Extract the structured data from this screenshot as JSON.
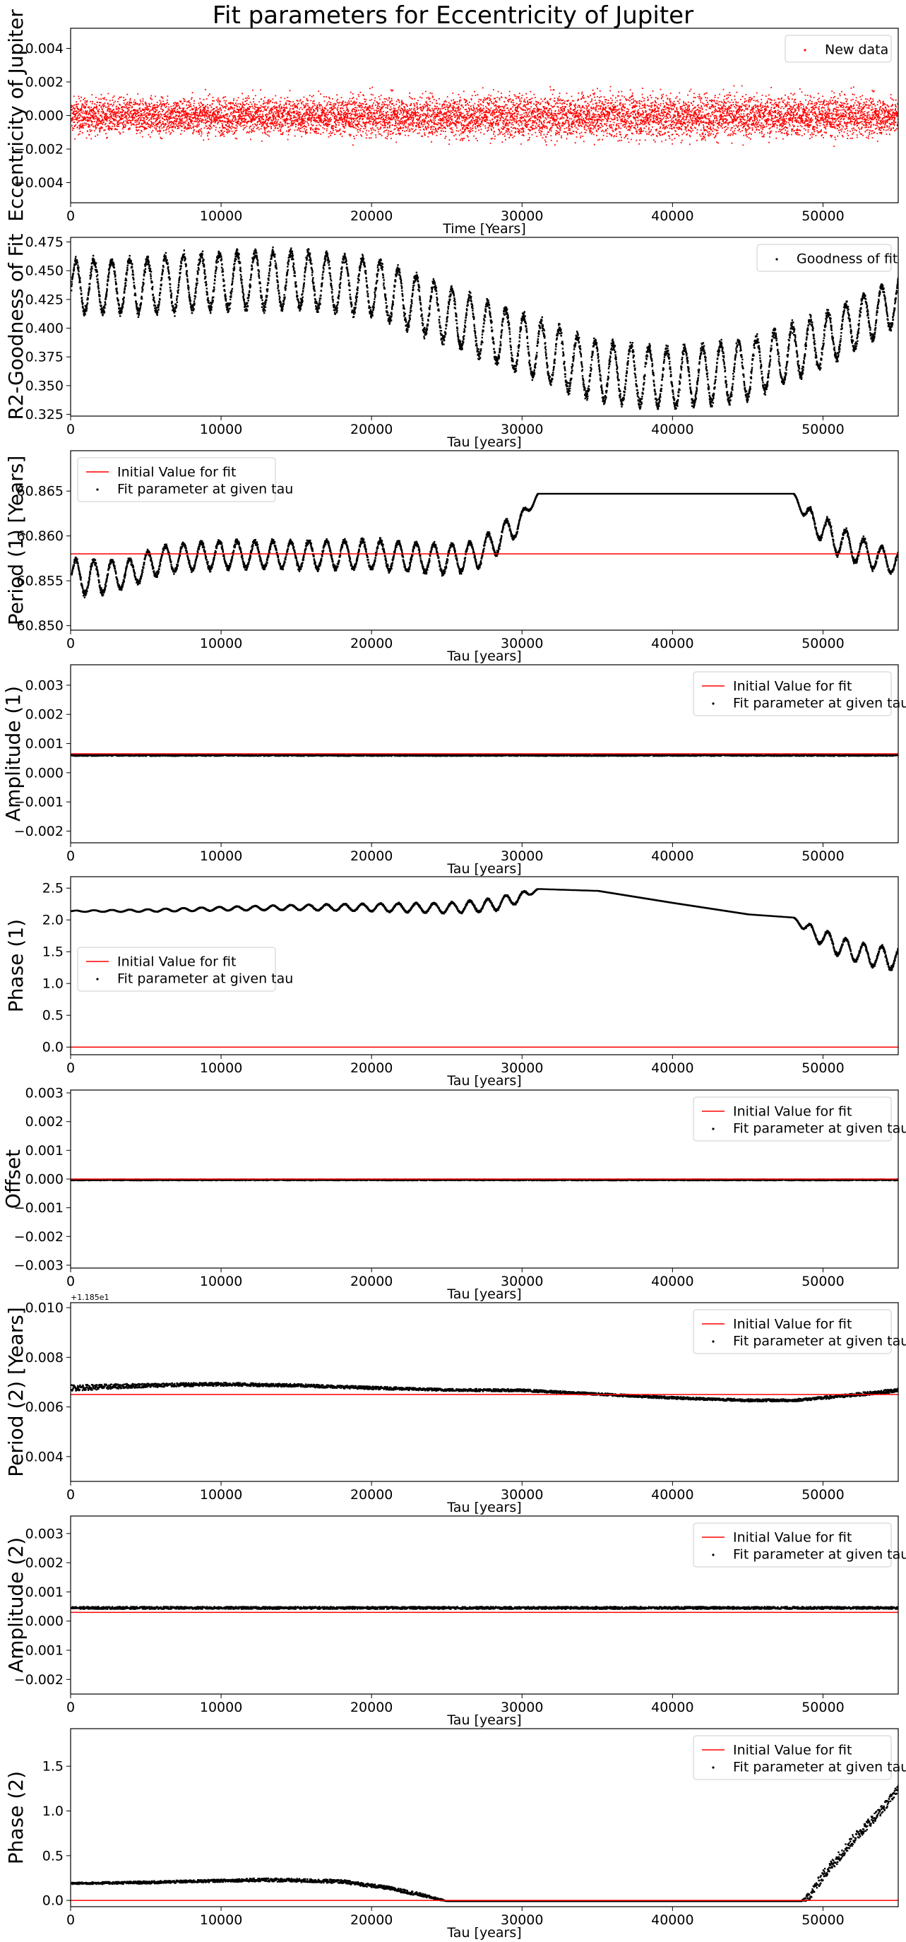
{
  "figure": {
    "title": "Fit parameters for Eccentricity of Jupiter"
  },
  "colors": {
    "initial_line": "#ff0000",
    "new_data_points": "#ff0000",
    "fit_points": "#000000",
    "axes": "#000000"
  },
  "chart_data": [
    {
      "type": "scatter",
      "ylabel": "Eccentricity of Jupiter",
      "xlabel": "Time [Years]",
      "xlim": [
        0,
        55000
      ],
      "ylim": [
        -0.0052,
        0.0052
      ],
      "yticks": [
        0.004,
        0.002,
        0.0,
        -0.002,
        -0.004
      ],
      "ytick_labels": [
        "0.004",
        "0.002",
        "0.000",
        "−0.002",
        "−0.004"
      ],
      "xticks": [
        0,
        10000,
        20000,
        30000,
        40000,
        50000
      ],
      "legend": {
        "location": "upper right",
        "entries": [
          {
            "label": "New data",
            "marker": "point",
            "color": "#ff0000"
          }
        ]
      },
      "series": [
        {
          "name": "New data",
          "kind": "noise_band",
          "color": "#ff0000",
          "x": [
            0,
            10000,
            20000,
            30000,
            40000,
            50000,
            55000
          ],
          "y_center": [
            0.0,
            0.0,
            0.0,
            0.0,
            0.0,
            0.0,
            0.0
          ],
          "y_half_width": [
            0.0017,
            0.0018,
            0.0019,
            0.0021,
            0.0022,
            0.002,
            0.0018
          ]
        }
      ]
    },
    {
      "type": "scatter",
      "ylabel": "R2-Goodness of Fit",
      "xlabel": "Tau [years]",
      "xlim": [
        0,
        55000
      ],
      "ylim": [
        0.3235,
        0.479
      ],
      "yticks": [
        0.475,
        0.45,
        0.425,
        0.4,
        0.375,
        0.35,
        0.325
      ],
      "ytick_labels": [
        "0.475",
        "0.450",
        "0.425",
        "0.400",
        "0.375",
        "0.350",
        "0.325"
      ],
      "xticks": [
        0,
        10000,
        20000,
        30000,
        40000,
        50000
      ],
      "legend": {
        "location": "upper right",
        "entries": [
          {
            "label": "Goodness of fit",
            "marker": "point",
            "color": "#000000"
          }
        ]
      },
      "series": [
        {
          "name": "Goodness of fit",
          "kind": "oscillation",
          "color": "#000000",
          "period_years": 1190,
          "x": [
            0,
            5000,
            10000,
            15000,
            20000,
            25000,
            30000,
            35000,
            40000,
            45000,
            50000,
            55000
          ],
          "y_center": [
            0.437,
            0.438,
            0.442,
            0.443,
            0.437,
            0.412,
            0.387,
            0.363,
            0.357,
            0.365,
            0.39,
            0.425
          ],
          "y_amplitude": [
            0.022,
            0.023,
            0.024,
            0.024,
            0.024,
            0.024,
            0.025,
            0.025,
            0.025,
            0.025,
            0.022,
            0.02
          ]
        }
      ]
    },
    {
      "type": "scatter",
      "ylabel": "Period (1) [Years]",
      "xlabel": "Tau [years]",
      "xlim": [
        0,
        55000
      ],
      "ylim": [
        60.8495,
        60.8695
      ],
      "yticks": [
        60.865,
        60.86,
        60.855,
        60.85
      ],
      "ytick_labels": [
        "60.865",
        "60.860",
        "60.855",
        "60.850"
      ],
      "xticks": [
        0,
        10000,
        20000,
        30000,
        40000,
        50000
      ],
      "legend": {
        "location": "upper left",
        "entries": [
          {
            "label": "Initial Value for fit",
            "marker": "line",
            "color": "#ff0000"
          },
          {
            "label": "Fit parameter at given tau",
            "marker": "point",
            "color": "#000000"
          }
        ]
      },
      "initial_value": 60.858,
      "series": [
        {
          "name": "Fit parameter at given tau",
          "kind": "oscillation",
          "color": "#000000",
          "period_years": 1190,
          "x": [
            0,
            2000,
            4000,
            6000,
            10000,
            15000,
            20000,
            25000,
            27000,
            29000,
            30000,
            31000,
            48000,
            49000,
            51000,
            53000,
            55000
          ],
          "y_center": [
            60.8555,
            60.8555,
            60.856,
            60.8575,
            60.858,
            60.858,
            60.858,
            60.8575,
            60.858,
            60.8605,
            60.862,
            60.8648,
            60.8648,
            60.862,
            60.8595,
            60.858,
            60.857
          ],
          "y_amplitude": [
            0.002,
            0.0018,
            0.0015,
            0.0015,
            0.0015,
            0.0015,
            0.0016,
            0.0016,
            0.0015,
            0.0015,
            0.001,
            0.0,
            0.0,
            0.0012,
            0.0016,
            0.0014,
            0.0012
          ]
        }
      ]
    },
    {
      "type": "scatter",
      "ylabel": "Amplitude (1)",
      "xlabel": "Tau [years]",
      "xlim": [
        0,
        55000
      ],
      "ylim": [
        -0.0024,
        0.0037
      ],
      "yticks": [
        0.003,
        0.002,
        0.001,
        0.0,
        -0.001,
        -0.002
      ],
      "ytick_labels": [
        "0.003",
        "0.002",
        "0.001",
        "0.000",
        "−0.001",
        "−0.002"
      ],
      "xticks": [
        0,
        10000,
        20000,
        30000,
        40000,
        50000
      ],
      "legend": {
        "location": "upper right",
        "entries": [
          {
            "label": "Initial Value for fit",
            "marker": "line",
            "color": "#ff0000"
          },
          {
            "label": "Fit parameter at given tau",
            "marker": "point",
            "color": "#000000"
          }
        ]
      },
      "initial_value": 0.00065,
      "series": [
        {
          "name": "Fit parameter at given tau",
          "kind": "flat",
          "color": "#000000",
          "x": [
            0,
            55000
          ],
          "y_center": [
            0.00063,
            0.00063
          ],
          "y_half_width": [
            3e-05,
            3e-05
          ]
        }
      ]
    },
    {
      "type": "scatter",
      "ylabel": "Phase (1)",
      "xlabel": "Tau [years]",
      "xlim": [
        0,
        55000
      ],
      "ylim": [
        -0.12,
        2.68
      ],
      "yticks": [
        2.5,
        2.0,
        1.5,
        1.0,
        0.5,
        0.0
      ],
      "ytick_labels": [
        "2.5",
        "2.0",
        "1.5",
        "1.0",
        "0.5",
        "0.0"
      ],
      "xticks": [
        0,
        10000,
        20000,
        30000,
        40000,
        50000
      ],
      "legend": {
        "location": "center left",
        "entries": [
          {
            "label": "Initial Value for fit",
            "marker": "line",
            "color": "#ff0000"
          },
          {
            "label": "Fit parameter at given tau",
            "marker": "point",
            "color": "#000000"
          }
        ]
      },
      "initial_value": 0.0,
      "series": [
        {
          "name": "Fit parameter at given tau",
          "kind": "oscillation",
          "color": "#000000",
          "period_years": 1190,
          "x": [
            0,
            5000,
            10000,
            15000,
            20000,
            25000,
            28000,
            30000,
            31000,
            35000,
            40000,
            45000,
            48000,
            49000,
            51000,
            53000,
            55000
          ],
          "y_center": [
            2.15,
            2.16,
            2.19,
            2.21,
            2.21,
            2.2,
            2.25,
            2.38,
            2.5,
            2.47,
            2.28,
            2.1,
            2.05,
            1.85,
            1.6,
            1.45,
            1.4
          ],
          "y_amplitude": [
            0.01,
            0.02,
            0.03,
            0.04,
            0.06,
            0.08,
            0.1,
            0.08,
            0.0,
            0.0,
            0.0,
            0.0,
            0.0,
            0.1,
            0.15,
            0.16,
            0.17
          ]
        }
      ]
    },
    {
      "type": "scatter",
      "ylabel": "Offset",
      "xlabel": "Tau [years]",
      "xlim": [
        0,
        55000
      ],
      "ylim": [
        -0.0031,
        0.0031
      ],
      "yticks": [
        0.003,
        0.002,
        0.001,
        0.0,
        -0.001,
        -0.002,
        -0.003
      ],
      "ytick_labels": [
        "0.003",
        "0.002",
        "0.001",
        "0.000",
        "−0.001",
        "−0.002",
        "−0.003"
      ],
      "xticks": [
        0,
        10000,
        20000,
        30000,
        40000,
        50000
      ],
      "legend": {
        "location": "upper right",
        "entries": [
          {
            "label": "Initial Value for fit",
            "marker": "line",
            "color": "#ff0000"
          },
          {
            "label": "Fit parameter at given tau",
            "marker": "point",
            "color": "#000000"
          }
        ]
      },
      "initial_value": 0.0,
      "series": [
        {
          "name": "Fit parameter at given tau",
          "kind": "flat",
          "color": "#000000",
          "x": [
            0,
            55000
          ],
          "y_center": [
            0.0,
            0.0
          ],
          "y_half_width": [
            2e-05,
            2e-05
          ]
        }
      ]
    },
    {
      "type": "scatter",
      "ylabel": "Period (2) [Years]",
      "xlabel": "Tau [years]",
      "xlim": [
        0,
        55000
      ],
      "ylim": [
        0.003,
        0.0102
      ],
      "offset_text": "+1.185e1",
      "yticks": [
        0.01,
        0.008,
        0.006,
        0.004
      ],
      "ytick_labels": [
        "0.010",
        "0.008",
        "0.006",
        "0.004"
      ],
      "xticks": [
        0,
        10000,
        20000,
        30000,
        40000,
        50000
      ],
      "legend": {
        "location": "upper right",
        "entries": [
          {
            "label": "Initial Value for fit",
            "marker": "line",
            "color": "#ff0000"
          },
          {
            "label": "Fit parameter at given tau",
            "marker": "point",
            "color": "#000000"
          }
        ]
      },
      "initial_value": 0.0065,
      "series": [
        {
          "name": "Fit parameter at given tau",
          "kind": "flat",
          "color": "#000000",
          "x": [
            0,
            5000,
            10000,
            15000,
            20000,
            25000,
            30000,
            35000,
            40000,
            45000,
            48000,
            50000,
            55000
          ],
          "y_center": [
            0.0068,
            0.0069,
            0.00695,
            0.0069,
            0.0068,
            0.00672,
            0.0067,
            0.00655,
            0.0064,
            0.0063,
            0.0063,
            0.0064,
            0.0067
          ],
          "y_half_width": [
            0.00012,
            8e-05,
            7e-05,
            6e-05,
            6e-05,
            5e-05,
            5e-05,
            5e-05,
            5e-05,
            5e-05,
            5e-05,
            6e-05,
            8e-05
          ]
        }
      ]
    },
    {
      "type": "scatter",
      "ylabel": "Amplitude (2)",
      "xlabel": "Tau [years]",
      "xlim": [
        0,
        55000
      ],
      "ylim": [
        -0.0025,
        0.0036
      ],
      "yticks": [
        0.003,
        0.002,
        0.001,
        0.0,
        -0.001,
        -0.002
      ],
      "ytick_labels": [
        "0.003",
        "0.002",
        "0.001",
        "0.000",
        "−0.001",
        "−0.002"
      ],
      "xticks": [
        0,
        10000,
        20000,
        30000,
        40000,
        50000
      ],
      "legend": {
        "location": "upper right",
        "entries": [
          {
            "label": "Initial Value for fit",
            "marker": "line",
            "color": "#ff0000"
          },
          {
            "label": "Fit parameter at given tau",
            "marker": "point",
            "color": "#000000"
          }
        ]
      },
      "initial_value": 0.0003,
      "series": [
        {
          "name": "Fit parameter at given tau",
          "kind": "flat",
          "color": "#000000",
          "x": [
            0,
            55000
          ],
          "y_center": [
            0.00048,
            0.00048
          ],
          "y_half_width": [
            4e-05,
            4e-05
          ]
        }
      ]
    },
    {
      "type": "scatter",
      "ylabel": "Phase (2)",
      "xlabel": "Tau [years]",
      "xlim": [
        0,
        55000
      ],
      "ylim": [
        -0.07,
        1.92
      ],
      "yticks": [
        1.5,
        1.0,
        0.5,
        0.0
      ],
      "ytick_labels": [
        "1.5",
        "1.0",
        "0.5",
        "0.0"
      ],
      "xticks": [
        0,
        10000,
        20000,
        30000,
        40000,
        50000
      ],
      "legend": {
        "location": "upper right",
        "entries": [
          {
            "label": "Initial Value for fit",
            "marker": "line",
            "color": "#ff0000"
          },
          {
            "label": "Fit parameter at given tau",
            "marker": "point",
            "color": "#000000"
          }
        ]
      },
      "initial_value": 0.0,
      "series": [
        {
          "name": "Fit parameter at given tau",
          "kind": "flat",
          "color": "#000000",
          "x": [
            0,
            5000,
            10000,
            13000,
            18000,
            21000,
            23000,
            24500,
            25000,
            48500,
            49000,
            50000,
            52000,
            54000,
            55000
          ],
          "y_center": [
            0.2,
            0.21,
            0.23,
            0.24,
            0.22,
            0.15,
            0.08,
            0.02,
            0.0,
            0.0,
            0.05,
            0.3,
            0.7,
            1.05,
            1.28
          ],
          "y_half_width": [
            0.01,
            0.015,
            0.015,
            0.02,
            0.02,
            0.02,
            0.02,
            0.01,
            0.0,
            0.0,
            0.05,
            0.06,
            0.06,
            0.05,
            0.04
          ]
        }
      ]
    }
  ]
}
